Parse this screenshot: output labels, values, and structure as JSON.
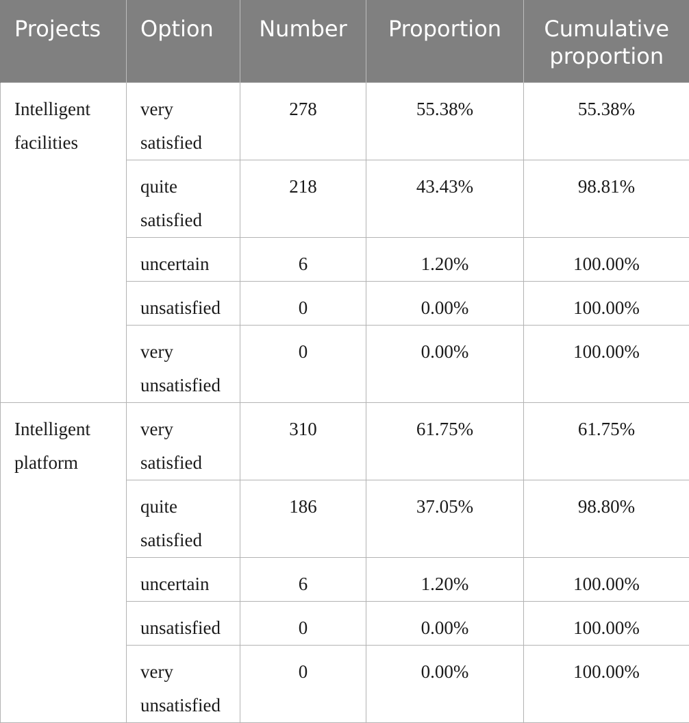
{
  "headers": [
    "Projects",
    "Option",
    "Number",
    "Proportion",
    "Cumulative proportion"
  ],
  "groups": [
    {
      "project": "Intelligent facilities",
      "rows": [
        {
          "option": "very satisfied",
          "number": "278",
          "proportion": "55.38%",
          "cumulative": "55.38%"
        },
        {
          "option": "quite satisfied",
          "number": "218",
          "proportion": "43.43%",
          "cumulative": "98.81%"
        },
        {
          "option": "uncertain",
          "number": "6",
          "proportion": "1.20%",
          "cumulative": "100.00%"
        },
        {
          "option": "unsatisfied",
          "number": "0",
          "proportion": "0.00%",
          "cumulative": "100.00%"
        },
        {
          "option": "very unsatisfied",
          "number": "0",
          "proportion": "0.00%",
          "cumulative": "100.00%"
        }
      ]
    },
    {
      "project": "Intelligent platform",
      "rows": [
        {
          "option": "very satisfied",
          "number": "310",
          "proportion": "61.75%",
          "cumulative": "61.75%"
        },
        {
          "option": "quite satisfied",
          "number": "186",
          "proportion": "37.05%",
          "cumulative": "98.80%"
        },
        {
          "option": "uncertain",
          "number": "6",
          "proportion": "1.20%",
          "cumulative": "100.00%"
        },
        {
          "option": "unsatisfied",
          "number": "0",
          "proportion": "0.00%",
          "cumulative": "100.00%"
        },
        {
          "option": "very unsatisfied",
          "number": "0",
          "proportion": "0.00%",
          "cumulative": "100.00%"
        }
      ]
    }
  ]
}
